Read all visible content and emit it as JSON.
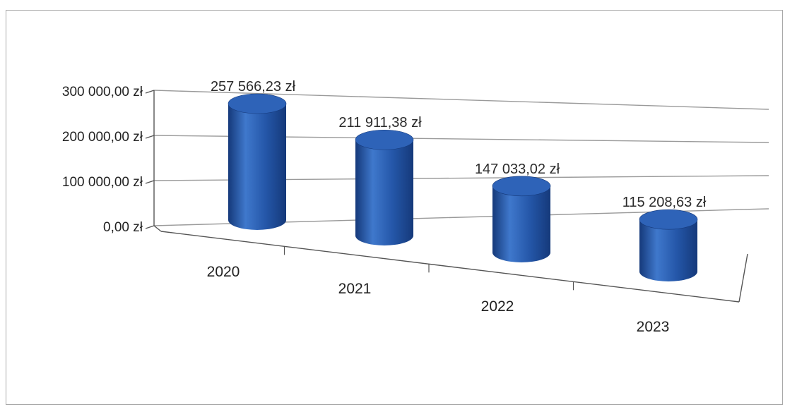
{
  "chart_data": {
    "type": "bar",
    "bar_shape": "cylinder-3d",
    "categories": [
      "2020",
      "2021",
      "2022",
      "2023"
    ],
    "values": [
      257566.23,
      211911.38,
      147033.02,
      115208.63
    ],
    "data_labels": [
      "257 566,23 zł",
      "211 911,38 zł",
      "147 033,02 zł",
      "115 208,63 zł"
    ],
    "y_ticks": [
      {
        "value": 0,
        "label": "0,00 zł"
      },
      {
        "value": 100000,
        "label": "100 000,00 zł"
      },
      {
        "value": 200000,
        "label": "200 000,00 zł"
      },
      {
        "value": 300000,
        "label": "300 000,00 zł"
      }
    ],
    "ylim": [
      0,
      300000
    ],
    "grid": true,
    "legend": "none",
    "colors": {
      "bar": "#2456a8",
      "bar_light": "#3f78cc",
      "bar_dark": "#15397a",
      "bar_top": "#2e63b8",
      "grid": "#9a9a9a",
      "axis": "#555555"
    }
  }
}
